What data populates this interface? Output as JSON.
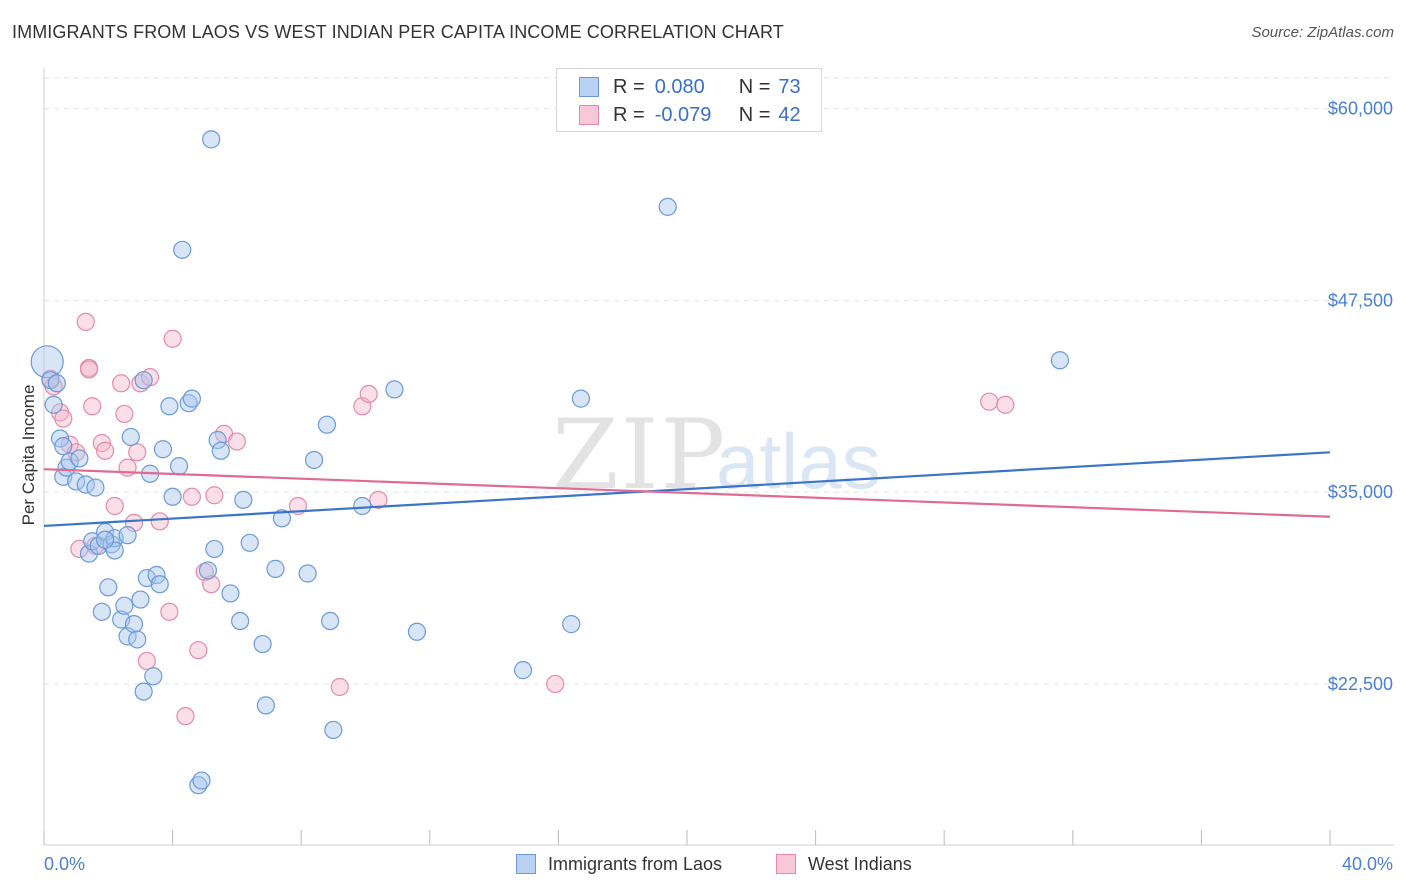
{
  "title": "IMMIGRANTS FROM LAOS VS WEST INDIAN PER CAPITA INCOME CORRELATION CHART",
  "source": "Source: ZipAtlas.com",
  "watermark": {
    "zip": "ZIP",
    "atlas": "atlas"
  },
  "legend": {
    "rows": [
      {
        "r_label": "R =",
        "r_value": "0.080",
        "n_label": "N =",
        "n_value": "73"
      },
      {
        "r_label": "R =",
        "r_value": "-0.079",
        "n_label": "N =",
        "n_value": "42"
      }
    ]
  },
  "bottom_legend": {
    "series1": "Immigrants from Laos",
    "series2": "West Indians"
  },
  "colors": {
    "blue_fill": "#a9c6ee",
    "blue_stroke": "#6a9ad8",
    "blue_line": "#3a75c8",
    "pink_fill": "#f5b9cc",
    "pink_stroke": "#e48aa8",
    "pink_line": "#e06a92",
    "tick_text": "#4a7fd0",
    "grid": "#e2e2e2"
  },
  "chart_data": {
    "type": "scatter",
    "title": "IMMIGRANTS FROM LAOS VS WEST INDIAN PER CAPITA INCOME CORRELATION CHART",
    "xlabel": "",
    "ylabel": "Per Capita Income",
    "xlim": [
      0,
      40
    ],
    "ylim": [
      12000,
      62000
    ],
    "x_tick_labels": [
      "0.0%",
      "40.0%"
    ],
    "y_ticks": [
      22500,
      35000,
      47500,
      60000
    ],
    "y_tick_labels": [
      "$22,500",
      "$35,000",
      "$47,500",
      "$60,000"
    ],
    "grid": true,
    "legend_position": "top-center",
    "series": [
      {
        "name": "Immigrants from Laos",
        "r": 0.08,
        "n": 73,
        "trend": {
          "x": [
            0,
            40
          ],
          "y": [
            32800,
            37600
          ]
        },
        "points": [
          [
            0.1,
            43500
          ],
          [
            0.2,
            42300
          ],
          [
            0.3,
            40700
          ],
          [
            0.5,
            38500
          ],
          [
            0.6,
            38000
          ],
          [
            0.6,
            36000
          ],
          [
            0.7,
            36600
          ],
          [
            0.8,
            37000
          ],
          [
            1.0,
            35700
          ],
          [
            1.1,
            37200
          ],
          [
            1.3,
            35500
          ],
          [
            1.4,
            31000
          ],
          [
            1.5,
            31800
          ],
          [
            1.6,
            35300
          ],
          [
            1.7,
            31500
          ],
          [
            1.8,
            27200
          ],
          [
            1.9,
            32400
          ],
          [
            2.0,
            28800
          ],
          [
            2.1,
            31600
          ],
          [
            2.2,
            32000
          ],
          [
            2.2,
            31200
          ],
          [
            2.4,
            26700
          ],
          [
            2.5,
            27600
          ],
          [
            2.6,
            32200
          ],
          [
            2.6,
            25600
          ],
          [
            2.7,
            38600
          ],
          [
            2.8,
            26400
          ],
          [
            2.9,
            25400
          ],
          [
            3.0,
            28000
          ],
          [
            3.1,
            22000
          ],
          [
            3.2,
            29400
          ],
          [
            3.3,
            36200
          ],
          [
            3.4,
            23000
          ],
          [
            3.5,
            29600
          ],
          [
            3.6,
            29000
          ],
          [
            3.7,
            37800
          ],
          [
            3.9,
            40600
          ],
          [
            4.0,
            34700
          ],
          [
            4.2,
            36700
          ],
          [
            4.3,
            50800
          ],
          [
            4.5,
            40800
          ],
          [
            4.6,
            41100
          ],
          [
            4.8,
            15900
          ],
          [
            4.9,
            16200
          ],
          [
            5.1,
            29900
          ],
          [
            5.2,
            58000
          ],
          [
            5.3,
            31300
          ],
          [
            5.4,
            38400
          ],
          [
            5.5,
            37700
          ],
          [
            5.8,
            28400
          ],
          [
            6.1,
            26600
          ],
          [
            6.2,
            34500
          ],
          [
            6.4,
            31700
          ],
          [
            6.8,
            25100
          ],
          [
            6.9,
            21100
          ],
          [
            7.2,
            30000
          ],
          [
            7.4,
            33300
          ],
          [
            8.2,
            29700
          ],
          [
            8.4,
            37100
          ],
          [
            8.8,
            39400
          ],
          [
            8.9,
            26600
          ],
          [
            9.0,
            19500
          ],
          [
            9.9,
            34100
          ],
          [
            10.9,
            41700
          ],
          [
            11.6,
            25900
          ],
          [
            14.9,
            23400
          ],
          [
            16.4,
            26400
          ],
          [
            16.7,
            41100
          ],
          [
            19.4,
            53600
          ],
          [
            31.6,
            43600
          ],
          [
            0.4,
            42100
          ],
          [
            1.9,
            31900
          ],
          [
            3.1,
            42300
          ]
        ]
      },
      {
        "name": "West Indians",
        "r": -0.079,
        "n": 42,
        "trend": {
          "x": [
            0,
            40
          ],
          "y": [
            36500,
            33400
          ]
        },
        "points": [
          [
            0.2,
            42400
          ],
          [
            0.3,
            41900
          ],
          [
            0.5,
            40200
          ],
          [
            0.6,
            39800
          ],
          [
            0.8,
            38100
          ],
          [
            1.0,
            37600
          ],
          [
            1.3,
            46100
          ],
          [
            1.4,
            43100
          ],
          [
            1.5,
            40600
          ],
          [
            1.6,
            31500
          ],
          [
            1.8,
            38200
          ],
          [
            1.9,
            37700
          ],
          [
            2.2,
            34100
          ],
          [
            2.4,
            42100
          ],
          [
            2.5,
            40100
          ],
          [
            2.6,
            36600
          ],
          [
            2.8,
            33000
          ],
          [
            2.9,
            37600
          ],
          [
            3.0,
            42100
          ],
          [
            3.2,
            24000
          ],
          [
            3.3,
            42500
          ],
          [
            3.6,
            33100
          ],
          [
            3.9,
            27200
          ],
          [
            4.0,
            45000
          ],
          [
            4.4,
            20400
          ],
          [
            4.6,
            34700
          ],
          [
            4.8,
            24700
          ],
          [
            5.0,
            29800
          ],
          [
            5.2,
            29000
          ],
          [
            5.3,
            34800
          ],
          [
            5.6,
            38800
          ],
          [
            6.0,
            38300
          ],
          [
            7.9,
            34100
          ],
          [
            9.2,
            22300
          ],
          [
            9.9,
            40600
          ],
          [
            10.1,
            41400
          ],
          [
            10.4,
            34500
          ],
          [
            15.9,
            22500
          ],
          [
            29.4,
            40900
          ],
          [
            29.9,
            40700
          ],
          [
            1.1,
            31300
          ],
          [
            1.4,
            43000
          ]
        ]
      }
    ]
  }
}
